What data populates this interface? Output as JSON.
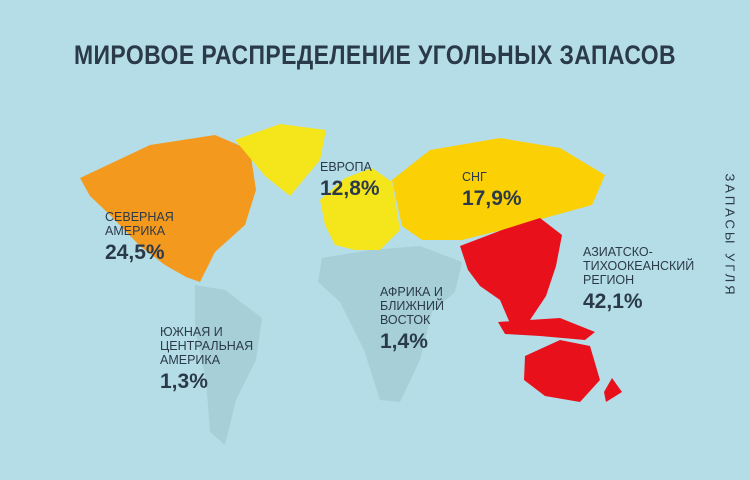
{
  "title": "МИРОВОЕ РАСПРЕДЕЛЕНИЕ УГОЛЬНЫХ ЗАПАСОВ",
  "side_label": "ЗАПАСЫ УГЛЯ",
  "regions": [
    {
      "name": "СЕВЕРНАЯ АМЕРИКА",
      "value": 24.5,
      "value_label": "24,5%",
      "color": "#f39a1e"
    },
    {
      "name": "ЮЖНАЯ И ЦЕНТРАЛЬНАЯ АМЕРИКА",
      "value": 1.3,
      "value_label": "1,3%",
      "color": "#a6cfd7"
    },
    {
      "name": "ЕВРОПА",
      "value": 12.8,
      "value_label": "12,8%",
      "color": "#f5e61c"
    },
    {
      "name": "СНГ",
      "value": 17.9,
      "value_label": "17,9%",
      "color": "#fbd106"
    },
    {
      "name": "АФРИКА И БЛИЖНИЙ ВОСТОК",
      "value": 1.4,
      "value_label": "1,4%",
      "color": "#a6cfd7"
    },
    {
      "name": "АЗИАТСКО-ТИХООКЕАНСКИЙ РЕГИОН",
      "value": 42.1,
      "value_label": "42,1%",
      "color": "#e8111b"
    }
  ]
}
